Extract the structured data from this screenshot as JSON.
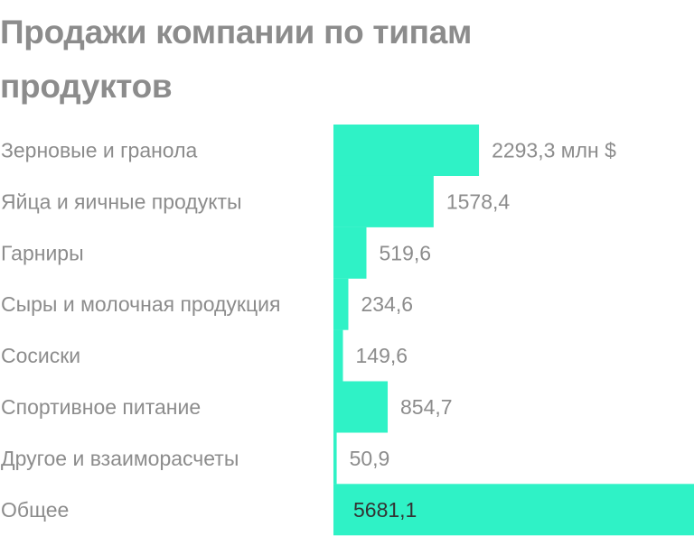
{
  "chart_data": {
    "type": "bar",
    "orientation": "horizontal",
    "title": "Продажи компании по типам продуктов",
    "categories": [
      "Зерновые и гранола",
      "Яйца и яичные продукты",
      "Гарниры",
      "Сыры и молочная продукция",
      "Сосиски",
      "Спортивное питание",
      "Другое и взаиморасчеты",
      "Общее"
    ],
    "values": [
      2293.3,
      1578.4,
      519.6,
      234.6,
      149.6,
      854.7,
      50.9,
      5681.1
    ],
    "value_labels": [
      "2293,3 млн $",
      "1578,4",
      "519,6",
      "234,6",
      "149,6",
      "854,7",
      "50,9",
      "5681,1"
    ],
    "bar_color": "#2ff2c6",
    "label_color": "#8c8c8c",
    "total_label_color": "#333333",
    "xlim": [
      0,
      5681.1
    ],
    "grid": false,
    "legend": "none"
  }
}
